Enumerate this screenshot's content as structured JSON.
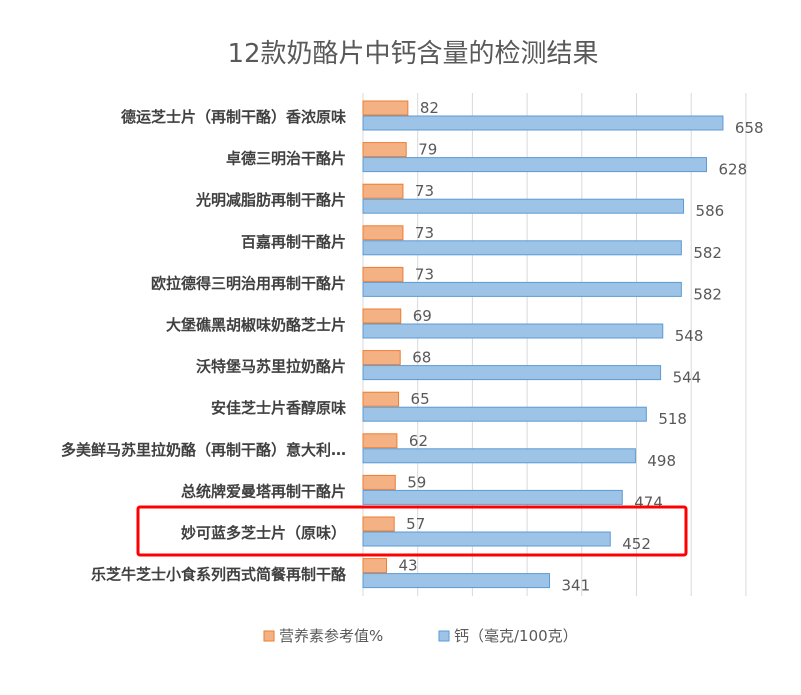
{
  "chart_data": {
    "type": "bar",
    "orientation": "horizontal",
    "title": "12款奶酪片中钙含量的检测结果",
    "categories": [
      "德运芝士片（再制干酪）香浓原味",
      "卓德三明治干酪片",
      "光明减脂肪再制干酪片",
      "百嘉再制干酪片",
      "欧拉德得三明治用再制干酪片",
      "大堡礁黑胡椒味奶酪芝士片",
      "沃特堡马苏里拉奶酪片",
      "安佳芝士片香醇原味",
      "多美鲜马苏里拉奶酪（再制干酪）意大利…",
      "总统牌爱曼塔再制干酪片",
      "妙可蓝多芝士片（原味）",
      "乐芝牛芝士小食系列西式简餐再制干酪"
    ],
    "series": [
      {
        "name": "营养素参考值%",
        "color": "#f4b183",
        "border": "#ed7d31",
        "values": [
          82,
          79,
          73,
          73,
          73,
          69,
          68,
          65,
          62,
          59,
          57,
          43
        ]
      },
      {
        "name": "钙（毫克/100克）",
        "color": "#9dc3e6",
        "border": "#5b9bd5",
        "values": [
          658,
          628,
          586,
          582,
          582,
          548,
          544,
          518,
          498,
          474,
          452,
          341
        ]
      }
    ],
    "xlim": [
      0,
      700
    ],
    "grid": true,
    "legend": "bottom",
    "highlighted_category": "妙可蓝多芝士片（原味）",
    "highlight_color": "#ff0000"
  }
}
